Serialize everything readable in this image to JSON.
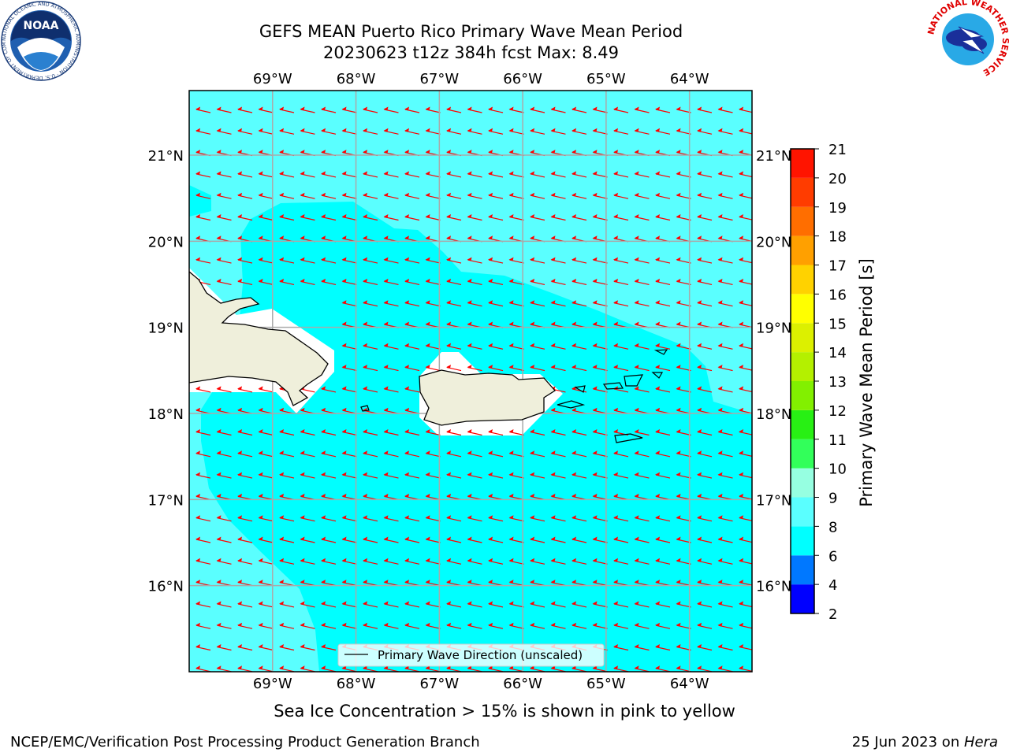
{
  "title": {
    "line1": "GEFS MEAN Puerto Rico Primary Wave Mean Period",
    "line2": "20230623 t12z 384h fcst   Max: 8.49"
  },
  "map": {
    "lon_range": [
      -70.0,
      -63.25
    ],
    "lat_range": [
      15.0,
      21.75
    ],
    "lon_ticks": [
      {
        "value": -69,
        "label": "69°W"
      },
      {
        "value": -68,
        "label": "68°W"
      },
      {
        "value": -67,
        "label": "67°W"
      },
      {
        "value": -66,
        "label": "66°W"
      },
      {
        "value": -65,
        "label": "65°W"
      },
      {
        "value": -64,
        "label": "64°W"
      }
    ],
    "lat_ticks": [
      {
        "value": 21,
        "label": "21°N"
      },
      {
        "value": 20,
        "label": "20°N"
      },
      {
        "value": 19,
        "label": "19°N"
      },
      {
        "value": 18,
        "label": "18°N"
      },
      {
        "value": 17,
        "label": "17°N"
      },
      {
        "value": 16,
        "label": "16°N"
      }
    ],
    "grid": true,
    "arrow_color": "#ff0000",
    "land_color": "#efefdb",
    "ocean_color_base": "#00ffff",
    "ocean_color_long": "#5affff"
  },
  "legend": {
    "text": "Primary Wave Direction (unscaled)",
    "placement": "bottom-center"
  },
  "colorbar": {
    "label": "Primary Wave Mean Period [s]",
    "levels": [
      {
        "value": "2",
        "color": "#0000ff"
      },
      {
        "value": "4",
        "color": "#0078ff"
      },
      {
        "value": "6",
        "color": "#00ffff"
      },
      {
        "value": "8",
        "color": "#5affff"
      },
      {
        "value": "9",
        "color": "#96ffe1"
      },
      {
        "value": "10",
        "color": "#32ff5a"
      },
      {
        "value": "11",
        "color": "#28f014"
      },
      {
        "value": "12",
        "color": "#82f000"
      },
      {
        "value": "13",
        "color": "#b4f000"
      },
      {
        "value": "14",
        "color": "#dcf000"
      },
      {
        "value": "15",
        "color": "#ffff00"
      },
      {
        "value": "16",
        "color": "#ffd200"
      },
      {
        "value": "17",
        "color": "#ffa000"
      },
      {
        "value": "18",
        "color": "#ff6e00"
      },
      {
        "value": "19",
        "color": "#ff3c00"
      },
      {
        "value": "20",
        "color": "#ff1400"
      },
      {
        "value": "21",
        "color": ""
      }
    ]
  },
  "caption": "Sea Ice Concentration > 15% is shown in pink to yellow",
  "footer": {
    "left": "NCEP/EMC/Verification Post Processing Product Generation Branch",
    "date": "25 Jun 2023 on ",
    "machine": "Hera"
  },
  "logos": {
    "noaa_text": "NOAA",
    "noaa_ring": "NATIONAL OCEANIC AND ATMOSPHERIC ADMINISTRATION · U.S. DEPARTMENT OF COMMERCE",
    "nws_ring": "NATIONAL WEATHER SERVICE"
  }
}
